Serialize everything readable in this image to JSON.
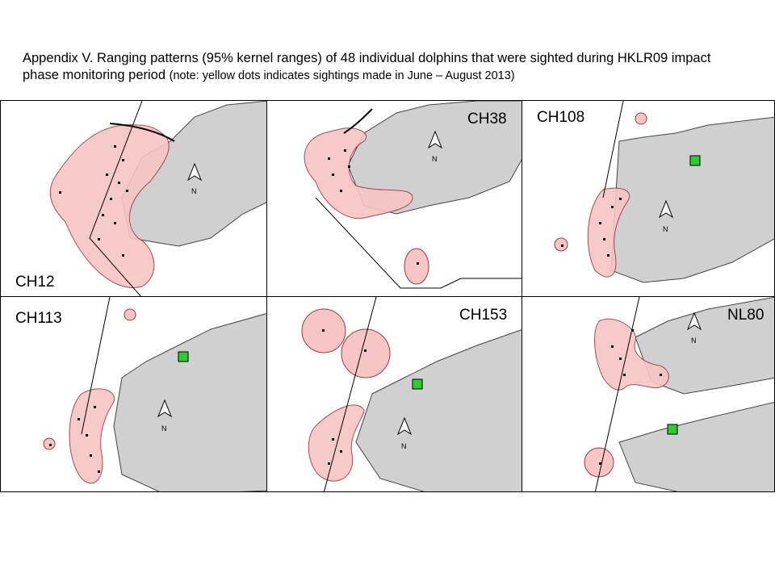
{
  "title": {
    "main": "Appendix V.  Ranging patterns (95% kernel ranges) of 48 individual dolphins that were sighted during HKLR09 impact phase monitoring period",
    "note": "(note: yellow dots indicates sightings made in June – August 2013)"
  },
  "panels": [
    {
      "id": "CH12"
    },
    {
      "id": "CH38"
    },
    {
      "id": "CH108"
    },
    {
      "id": "CH113"
    },
    {
      "id": "CH153"
    },
    {
      "id": "NL80"
    }
  ],
  "north_label": "N",
  "colors": {
    "range_fill": "#f7c5c5",
    "range_stroke": "#9c3a3a",
    "land": "#d0d0d0",
    "land_stroke": "#444444",
    "marker": "#2ecc2e",
    "dot": "#000000"
  }
}
